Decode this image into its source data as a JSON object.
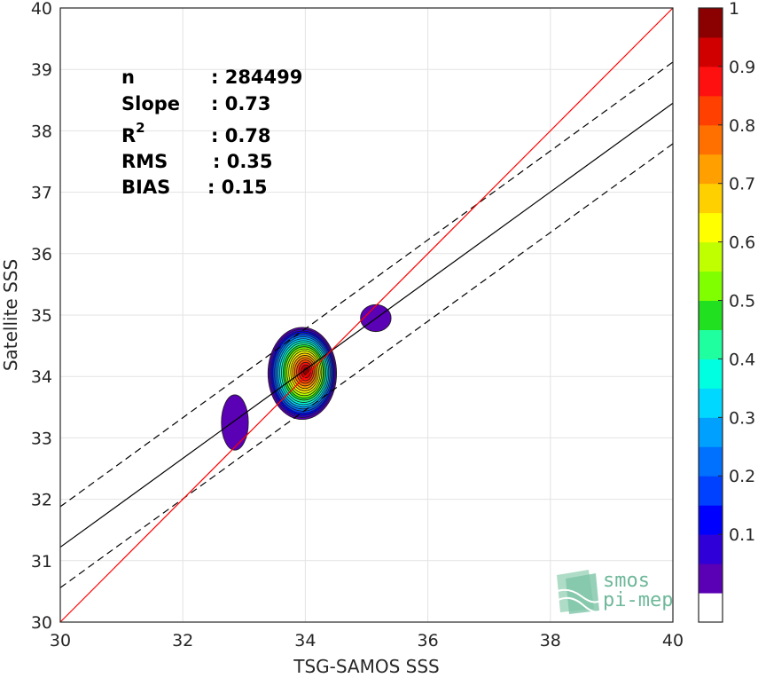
{
  "chart_data": {
    "type": "scatter",
    "subtype": "density-contour",
    "xlabel": "TSG-SAMOS SSS",
    "ylabel": "Satellite SSS",
    "xlim": [
      30,
      40
    ],
    "ylim": [
      30,
      40
    ],
    "xticks": [
      "30",
      "32",
      "34",
      "36",
      "38",
      "40"
    ],
    "yticks": [
      "30",
      "31",
      "32",
      "33",
      "34",
      "35",
      "36",
      "37",
      "38",
      "39",
      "40"
    ],
    "grid": true,
    "stats": [
      {
        "label": "n",
        "value": ": 284499"
      },
      {
        "label": "Slope",
        "value": ": 0.73"
      },
      {
        "label": "R",
        "sup": "2",
        "value": ": 0.78"
      },
      {
        "label": "RMS",
        "value": ": 0.35"
      },
      {
        "label": "BIAS",
        "value": ": 0.15"
      }
    ],
    "lines": {
      "identity": {
        "from": [
          30,
          30
        ],
        "to": [
          40,
          40
        ],
        "color": "#ff0000"
      },
      "regression": {
        "from": [
          30,
          31.22
        ],
        "to": [
          40,
          38.45
        ],
        "color": "#000000"
      },
      "upper_band": {
        "from": [
          30,
          31.88
        ],
        "to": [
          40,
          39.12
        ],
        "style": "dashed"
      },
      "lower_band": {
        "from": [
          30,
          30.56
        ],
        "to": [
          40,
          37.79
        ],
        "style": "dashed"
      }
    },
    "density_blobs": [
      {
        "name": "main",
        "cx": 33.95,
        "cy": 34.05,
        "rx": 0.56,
        "ry": 0.75,
        "peak": 1.0
      },
      {
        "name": "left",
        "cx": 32.85,
        "cy": 33.25,
        "rx": 0.22,
        "ry": 0.45,
        "peak": 0.05
      },
      {
        "name": "right",
        "cx": 35.15,
        "cy": 34.95,
        "rx": 0.25,
        "ry": 0.22,
        "peak": 0.05
      }
    ],
    "colorbar": {
      "ticks": [
        "0.1",
        "0.2",
        "0.3",
        "0.4",
        "0.5",
        "0.6",
        "0.7",
        "0.8",
        "0.9",
        "1"
      ],
      "levels": [
        "#ffffff",
        "#5a00b5",
        "#3000d8",
        "#0000ff",
        "#0040ff",
        "#0070ff",
        "#00a0ff",
        "#00d8ff",
        "#00ffe0",
        "#20ffa0",
        "#20e020",
        "#80ff00",
        "#c0ff00",
        "#ffff00",
        "#ffd000",
        "#ffa000",
        "#ff7000",
        "#ff4000",
        "#ff1010",
        "#d00000",
        "#8b0000"
      ]
    }
  },
  "logo": {
    "line1": "smos",
    "line2": "pi-mep"
  }
}
